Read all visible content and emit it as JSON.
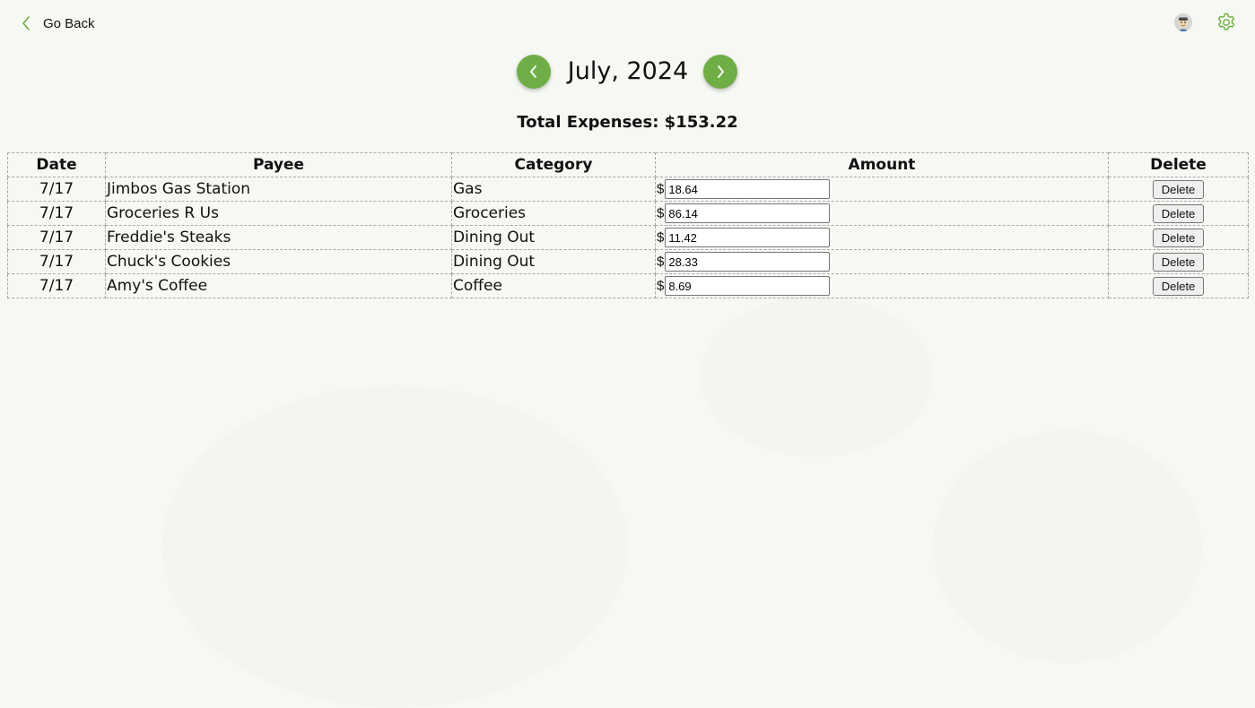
{
  "header": {
    "back_label": "Go Back",
    "month_label": "July, 2024",
    "total_label": "Total Expenses: $153.22"
  },
  "icons": {
    "back": "chevron-left-icon",
    "prev_month": "chevron-left-icon",
    "next_month": "chevron-right-icon",
    "avatar": "avatar-icon",
    "settings": "gear-icon"
  },
  "colors": {
    "accent": "#6fae47",
    "background": "#f6f8f3"
  },
  "table": {
    "columns": [
      "Date",
      "Payee",
      "Category",
      "Amount",
      "Delete"
    ],
    "currency_symbol": "$",
    "delete_label": "Delete",
    "rows": [
      {
        "date": "7/17",
        "payee": "Jimbos Gas Station",
        "category": "Gas",
        "amount": "18.64"
      },
      {
        "date": "7/17",
        "payee": "Groceries R Us",
        "category": "Groceries",
        "amount": "86.14"
      },
      {
        "date": "7/17",
        "payee": "Freddie's Steaks",
        "category": "Dining Out",
        "amount": "11.42"
      },
      {
        "date": "7/17",
        "payee": "Chuck's Cookies",
        "category": "Dining Out",
        "amount": "28.33"
      },
      {
        "date": "7/17",
        "payee": "Amy's Coffee",
        "category": "Coffee",
        "amount": "8.69"
      }
    ]
  }
}
